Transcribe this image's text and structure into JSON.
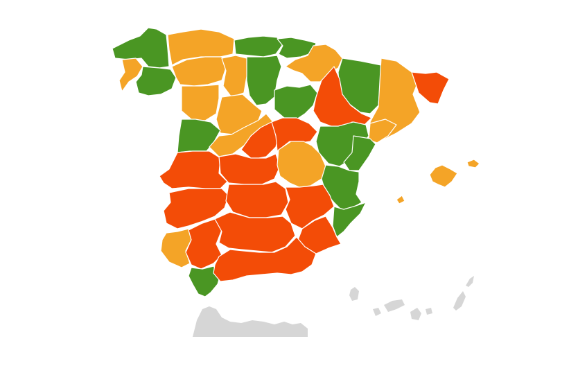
{
  "map": {
    "colors": {
      "green": "#4a9623",
      "orange": "#f4a427",
      "red": "#f34c07",
      "context": "#d6d6d6",
      "border": "#ffffff"
    },
    "regions": [
      {
        "name": "galicia-north",
        "level": "green"
      },
      {
        "name": "galicia-west",
        "level": "orange"
      },
      {
        "name": "galicia-east",
        "level": "green"
      },
      {
        "name": "asturias",
        "level": "orange"
      },
      {
        "name": "leon",
        "level": "orange"
      },
      {
        "name": "cantabria",
        "level": "green"
      },
      {
        "name": "basque-country",
        "level": "green"
      },
      {
        "name": "burgos",
        "level": "green"
      },
      {
        "name": "navarra",
        "level": "orange"
      },
      {
        "name": "aragon-north",
        "level": "green"
      },
      {
        "name": "catalonia-west",
        "level": "orange"
      },
      {
        "name": "catalonia-east",
        "level": "red"
      },
      {
        "name": "zamora",
        "level": "orange"
      },
      {
        "name": "palencia",
        "level": "orange"
      },
      {
        "name": "valladolid",
        "level": "orange"
      },
      {
        "name": "soria",
        "level": "green"
      },
      {
        "name": "zaragoza",
        "level": "red"
      },
      {
        "name": "tarragona",
        "level": "orange"
      },
      {
        "name": "salamanca",
        "level": "green"
      },
      {
        "name": "segovia-avila",
        "level": "orange"
      },
      {
        "name": "madrid",
        "level": "red"
      },
      {
        "name": "guadalajara",
        "level": "red"
      },
      {
        "name": "teruel",
        "level": "green"
      },
      {
        "name": "castellon",
        "level": "green"
      },
      {
        "name": "caceres",
        "level": "red"
      },
      {
        "name": "toledo",
        "level": "red"
      },
      {
        "name": "cuenca",
        "level": "orange"
      },
      {
        "name": "valencia",
        "level": "green"
      },
      {
        "name": "badajoz",
        "level": "red"
      },
      {
        "name": "ciudad-real",
        "level": "red"
      },
      {
        "name": "albacete",
        "level": "red"
      },
      {
        "name": "alicante",
        "level": "green"
      },
      {
        "name": "huelva",
        "level": "orange"
      },
      {
        "name": "sevilla",
        "level": "red"
      },
      {
        "name": "cordoba-jaen",
        "level": "red"
      },
      {
        "name": "murcia",
        "level": "red"
      },
      {
        "name": "cadiz",
        "level": "green"
      },
      {
        "name": "malaga-granada-almeria",
        "level": "red"
      },
      {
        "name": "mallorca",
        "level": "orange"
      },
      {
        "name": "menorca",
        "level": "orange"
      },
      {
        "name": "ibiza",
        "level": "orange"
      }
    ]
  }
}
